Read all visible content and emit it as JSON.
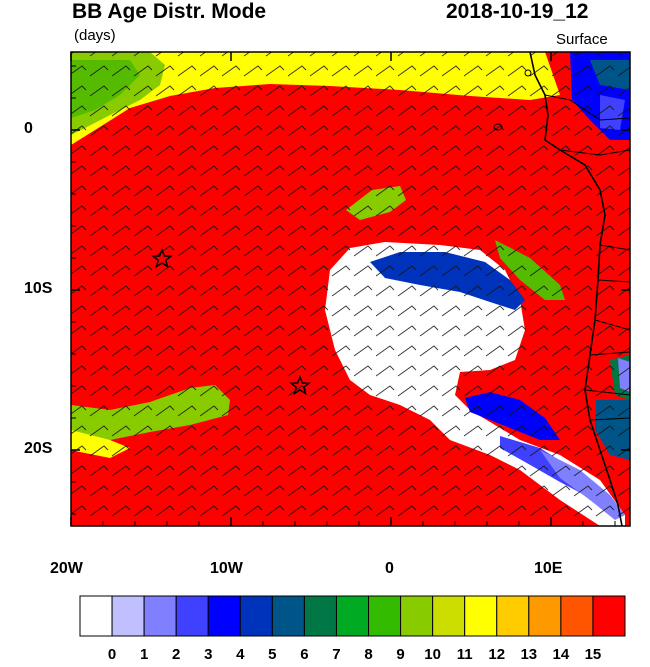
{
  "header": {
    "title": "BB Age Distr. Mode",
    "units": "(days)",
    "datetime": "2018-10-19_12",
    "level": "Surface"
  },
  "map": {
    "lat_labels": [
      "0",
      "10S",
      "20S"
    ],
    "lon_labels": [
      "20W",
      "10W",
      "0",
      "10E"
    ],
    "markers": [
      "star-marker",
      "star-marker"
    ]
  },
  "colorbar": {
    "labels": [
      "0",
      "1",
      "2",
      "3",
      "4",
      "5",
      "6",
      "7",
      "8",
      "9",
      "10",
      "11",
      "12",
      "13",
      "14",
      "15"
    ],
    "colors": [
      "#ffffff",
      "#c0c0ff",
      "#8080ff",
      "#4040ff",
      "#0000ff",
      "#0033bb",
      "#005588",
      "#007744",
      "#00aa22",
      "#33bb00",
      "#88cc00",
      "#ccdd00",
      "#ffff00",
      "#ffcc00",
      "#ff9900",
      "#ff5500",
      "#ff0000"
    ]
  }
}
